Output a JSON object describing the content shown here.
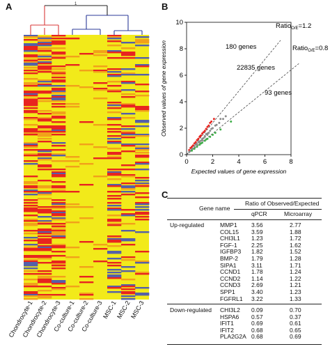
{
  "panels": {
    "a": "A",
    "b": "B",
    "c": "C"
  },
  "heatmap": {
    "samples": [
      "Chondrocyte-1",
      "Chondrocyte-2",
      "Chondrocyte-3",
      "Co-culture-1",
      "Co-culture-2",
      "Co-culture-3",
      "MSC-1",
      "MSC-2",
      "MSC-3"
    ],
    "colors": {
      "base": "#f2ea1a",
      "high": "#e8241f",
      "low": "#5560a8",
      "mid": "#f2a11a"
    },
    "dendrogram_colors": {
      "left": "#d83a3a",
      "right": "#2b3a98",
      "top": "#222222"
    },
    "dendrogram_mark": "1"
  },
  "chart_data": {
    "type": "scatter",
    "title": "",
    "xlabel": "Expected values of gene expression",
    "ylabel": "Observed values of gene expression",
    "xlim": [
      0,
      8
    ],
    "ylim": [
      0,
      10
    ],
    "xticks": [
      0,
      2,
      4,
      6,
      8
    ],
    "yticks": [
      0,
      2,
      4,
      6,
      8,
      10
    ],
    "reference_lines": [
      {
        "ratio_prefix": "Ratio",
        "ratio_sub": "O/E",
        "ratio_value": "=1.2",
        "slope": 1.2
      },
      {
        "ratio_prefix": "Ratio",
        "ratio_sub": "O/E",
        "ratio_value": "=0.8",
        "slope": 0.8
      }
    ],
    "annotations": [
      "180 genes",
      "22835 genes",
      "93 genes"
    ],
    "series": [
      {
        "color": "#e8241f",
        "points": [
          [
            0.3,
            0.5
          ],
          [
            0.5,
            0.7
          ],
          [
            0.7,
            0.95
          ],
          [
            0.9,
            1.2
          ],
          [
            1.1,
            1.45
          ],
          [
            1.3,
            1.7
          ],
          [
            1.5,
            1.95
          ],
          [
            1.7,
            2.2
          ],
          [
            0.6,
            0.85
          ],
          [
            1.0,
            1.35
          ],
          [
            1.4,
            1.8
          ],
          [
            0.8,
            1.1
          ],
          [
            1.2,
            1.6
          ],
          [
            1.6,
            2.1
          ],
          [
            0.4,
            0.6
          ],
          [
            1.9,
            2.5
          ],
          [
            2.1,
            2.7
          ],
          [
            1.8,
            2.4
          ],
          [
            0.2,
            0.35
          ],
          [
            1.05,
            1.4
          ]
        ]
      },
      {
        "color": "#8c8c8c",
        "points": [
          [
            0.2,
            0.2
          ],
          [
            0.4,
            0.4
          ],
          [
            0.6,
            0.6
          ],
          [
            0.8,
            0.8
          ],
          [
            1.0,
            1.0
          ],
          [
            1.2,
            1.2
          ],
          [
            1.4,
            1.4
          ],
          [
            1.6,
            1.6
          ],
          [
            1.8,
            1.8
          ],
          [
            2.0,
            2.0
          ],
          [
            2.2,
            2.2
          ],
          [
            0.5,
            0.45
          ],
          [
            0.7,
            0.75
          ],
          [
            0.9,
            0.95
          ],
          [
            1.1,
            1.05
          ],
          [
            1.3,
            1.25
          ],
          [
            1.5,
            1.55
          ],
          [
            1.7,
            1.65
          ],
          [
            1.9,
            1.95
          ],
          [
            2.3,
            2.25
          ],
          [
            2.5,
            2.4
          ],
          [
            1.2,
            1.1
          ],
          [
            1.0,
            0.9
          ],
          [
            0.8,
            0.75
          ],
          [
            0.3,
            0.3
          ],
          [
            2.8,
            2.7
          ],
          [
            3.0,
            2.9
          ],
          [
            2.6,
            2.7
          ],
          [
            1.6,
            1.5
          ],
          [
            1.4,
            1.35
          ]
        ]
      },
      {
        "color": "#3fae49",
        "points": [
          [
            0.4,
            0.3
          ],
          [
            0.6,
            0.45
          ],
          [
            0.8,
            0.6
          ],
          [
            1.0,
            0.75
          ],
          [
            1.2,
            0.9
          ],
          [
            1.4,
            1.05
          ],
          [
            1.6,
            1.2
          ],
          [
            1.8,
            1.35
          ],
          [
            2.0,
            1.5
          ],
          [
            2.2,
            1.65
          ],
          [
            2.6,
            1.9
          ],
          [
            3.4,
            2.5
          ],
          [
            1.1,
            0.85
          ],
          [
            1.5,
            1.15
          ]
        ]
      }
    ]
  },
  "table": {
    "header": {
      "gene_col": "Gene name",
      "group": "Ratio of Observed/Expected",
      "qpcr": "qPCR",
      "microarray": "Microarray"
    },
    "up_label": "Up-regulated",
    "down_label": "Down-regulated",
    "up": [
      {
        "gene": "MMP1",
        "qpcr": "3.56",
        "micro": "2.77"
      },
      {
        "gene": "COL15",
        "qpcr": "3.59",
        "micro": "1.88"
      },
      {
        "gene": "CHI3L1",
        "qpcr": "1.23",
        "micro": "1.72"
      },
      {
        "gene": "FGF-1",
        "qpcr": "2.25",
        "micro": "1.62"
      },
      {
        "gene": "IGFBP3",
        "qpcr": "1.82",
        "micro": "1.52"
      },
      {
        "gene": "BMP-2",
        "qpcr": "1.79",
        "micro": "1.28"
      },
      {
        "gene": "SIPA1",
        "qpcr": "3.11",
        "micro": "1.71"
      },
      {
        "gene": "CCND1",
        "qpcr": "1.78",
        "micro": "1.24"
      },
      {
        "gene": "CCND2",
        "qpcr": "1.14",
        "micro": "1.22"
      },
      {
        "gene": "CCND3",
        "qpcr": "2.69",
        "micro": "1.21"
      },
      {
        "gene": "SPP1",
        "qpcr": "3.40",
        "micro": "1.23"
      },
      {
        "gene": "FGFRL1",
        "qpcr": "3.22",
        "micro": "1.33"
      }
    ],
    "down": [
      {
        "gene": "CHI3L2",
        "qpcr": "0.09",
        "micro": "0.70"
      },
      {
        "gene": "HSPA6",
        "qpcr": "0.57",
        "micro": "0.37"
      },
      {
        "gene": "IFIT1",
        "qpcr": "0.69",
        "micro": "0.61"
      },
      {
        "gene": "IFIT2",
        "qpcr": "0.68",
        "micro": "0.65"
      },
      {
        "gene": "PLA2G2A",
        "qpcr": "0.68",
        "micro": "0.69"
      }
    ]
  }
}
